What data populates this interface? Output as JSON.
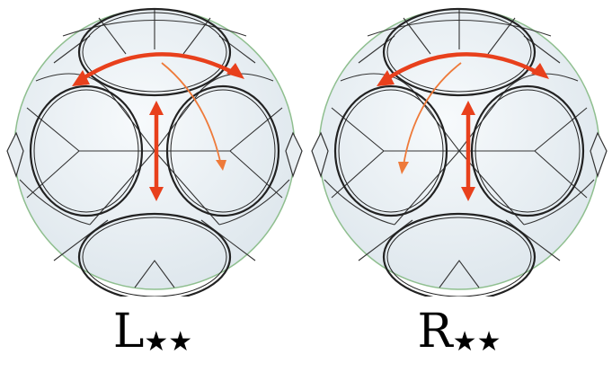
{
  "figures": [
    {
      "id": "left",
      "letter": "L",
      "marks": "★★"
    },
    {
      "id": "right",
      "letter": "R",
      "marks": "★★"
    }
  ],
  "colors": {
    "arrow": "#e8401c",
    "thin_arrow": "#ee7a3a",
    "outline": "#222222",
    "sphere_edge": "#8fbf8f",
    "fill": "#eef3f6"
  }
}
